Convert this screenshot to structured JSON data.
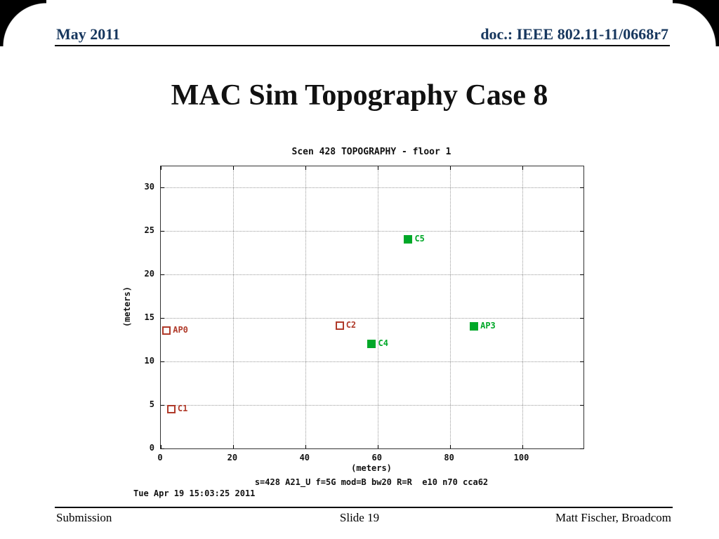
{
  "slide": {
    "header": {
      "left": "May 2011",
      "right": "doc.: IEEE 802.11-11/0668r7"
    },
    "title": "MAC Sim Topography Case 8",
    "footer": {
      "left": "Submission",
      "center": "Slide 19",
      "right": "Matt Fischer, Broadcom"
    }
  },
  "chart_data": {
    "type": "scatter",
    "title": "Scen 428 TOPOGRAPHY - floor 1",
    "xlabel": "(meters)",
    "ylabel": "(meters)",
    "caption": "s=428 A21_U f=5G mod=B bw20 R=R  e10 n70 cca62",
    "timestamp": "Tue Apr 19 15:03:25 2011",
    "xlim": [
      0,
      117
    ],
    "ylim": [
      0,
      32.4
    ],
    "xticks": [
      0,
      20,
      40,
      60,
      80,
      100
    ],
    "yticks": [
      0,
      5,
      10,
      15,
      20,
      25,
      30
    ],
    "grid": true,
    "colors": {
      "red": "#b03a2a",
      "green": "#00a828"
    },
    "series": [
      {
        "name": "red-nodes",
        "color": "#b03a2a",
        "marker": "open-square",
        "points": [
          {
            "label": "AP0",
            "x": 1.6,
            "y": 13.5
          },
          {
            "label": "C1",
            "x": 2.9,
            "y": 4.5
          },
          {
            "label": "C2",
            "x": 49.5,
            "y": 14.1
          }
        ]
      },
      {
        "name": "green-nodes",
        "color": "#00a828",
        "marker": "filled-square",
        "points": [
          {
            "label": "C4",
            "x": 58.4,
            "y": 12.0
          },
          {
            "label": "C5",
            "x": 68.5,
            "y": 24.0
          },
          {
            "label": "AP3",
            "x": 86.7,
            "y": 14.0
          }
        ]
      }
    ]
  }
}
